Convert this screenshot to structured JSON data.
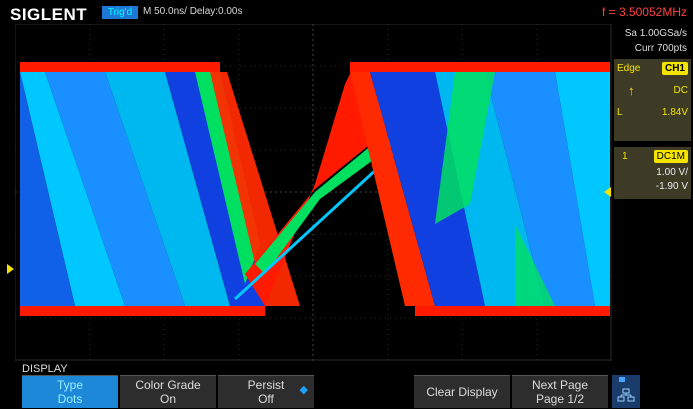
{
  "header": {
    "brand": "SIGLENT",
    "trigger_state": "Trig'd",
    "timebase": "M 50.0ns/ Delay:0.00s",
    "frequency": "f = 3.50052MHz"
  },
  "acquisition": {
    "sample_rate": "Sa 1.00GSa/s",
    "memory": "Curr 700pts"
  },
  "trigger": {
    "type": "Edge",
    "source": "CH1",
    "slope_symbol": "↑",
    "coupling": "DC",
    "level_label": "L",
    "level_value": "1.84V"
  },
  "channel1": {
    "number": "1",
    "coupling": "DC1M",
    "scale": "1.00 V/",
    "offset": "-1.90 V"
  },
  "menu": {
    "title": "DISPLAY",
    "softkeys": [
      {
        "line1": "Type",
        "line2": "Dots"
      },
      {
        "line1": "Color Grade",
        "line2": "On"
      },
      {
        "line1": "Persist",
        "line2": "Off"
      },
      {
        "line1": "",
        "line2": ""
      },
      {
        "line1": "Clear Display",
        "line2": ""
      },
      {
        "line1": "Next Page",
        "line2": "Page 1/2"
      }
    ]
  },
  "colors": {
    "accent": "#1e88d8",
    "trace_hot": "#ff1a00",
    "trace_mid": "#00e060",
    "trace_cool": "#00c8ff",
    "trace_dense": "#1040e0",
    "channel": "#f4e400"
  }
}
